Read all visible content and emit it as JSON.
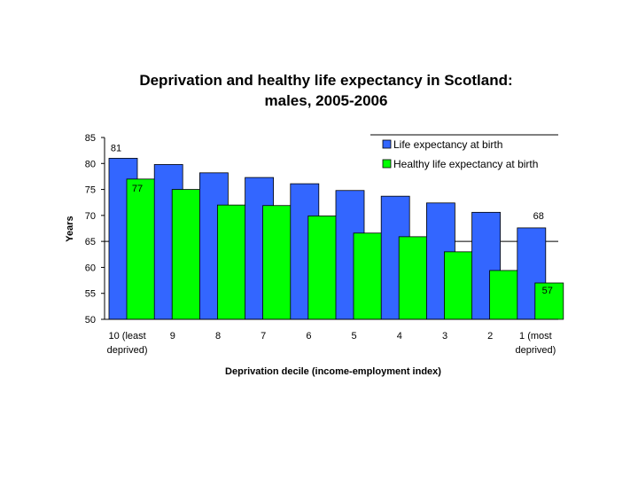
{
  "chart_data": {
    "type": "bar",
    "title": "Deprivation and healthy life expectancy in Scotland:",
    "subtitle": "males, 2005-2006",
    "xlabel": "Deprivation decile (income-employment index)",
    "ylabel": "Years",
    "ylim": [
      50,
      85
    ],
    "yticks": [
      50,
      55,
      60,
      65,
      70,
      75,
      80,
      85
    ],
    "categories": [
      [
        "10 (least",
        "deprived)"
      ],
      [
        "9"
      ],
      [
        "8"
      ],
      [
        "7"
      ],
      [
        "6"
      ],
      [
        "5"
      ],
      [
        "4"
      ],
      [
        "3"
      ],
      [
        "2"
      ],
      [
        "1 (most",
        "deprived)"
      ]
    ],
    "series": [
      {
        "name": "Life expectancy at birth",
        "color": "#3366ff",
        "values": [
          81,
          79.8,
          78.2,
          77.3,
          76.1,
          74.8,
          73.7,
          72.4,
          70.6,
          67.6
        ]
      },
      {
        "name": "Healthy life expectancy at birth",
        "color": "#00ff00",
        "values": [
          77,
          75,
          72,
          71.9,
          69.9,
          66.6,
          65.9,
          63,
          59.4,
          57
        ]
      }
    ],
    "data_labels": [
      {
        "series": 0,
        "index": 0,
        "text": "81"
      },
      {
        "series": 1,
        "index": 0,
        "text": "77"
      },
      {
        "series": 0,
        "index": 9,
        "text": "68"
      },
      {
        "series": 1,
        "index": 9,
        "text": "57"
      }
    ],
    "legend_position": "top-right"
  }
}
